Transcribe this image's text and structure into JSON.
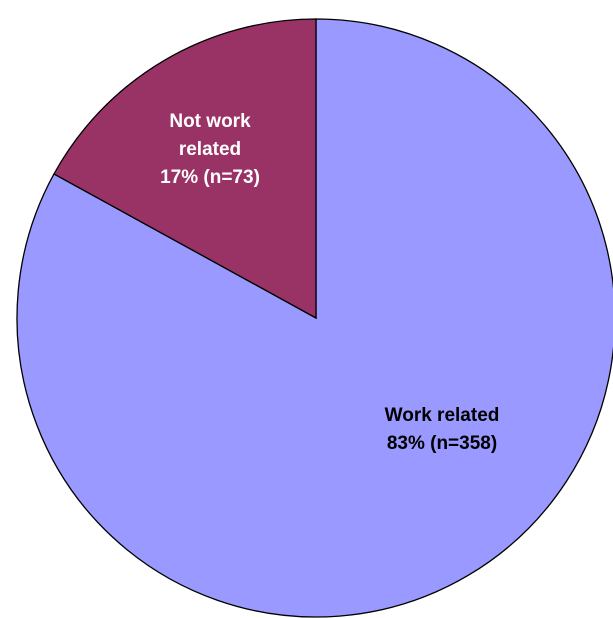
{
  "chart_data": {
    "type": "pie",
    "categories": [
      "Work related",
      "Not work related"
    ],
    "values": [
      83,
      17
    ],
    "value_labels": [
      "83% (n=358)",
      "17% (n=73)"
    ],
    "colors": [
      "#9999ff",
      "#993366"
    ],
    "label_colors": [
      "#000000",
      "#ffffff"
    ]
  }
}
